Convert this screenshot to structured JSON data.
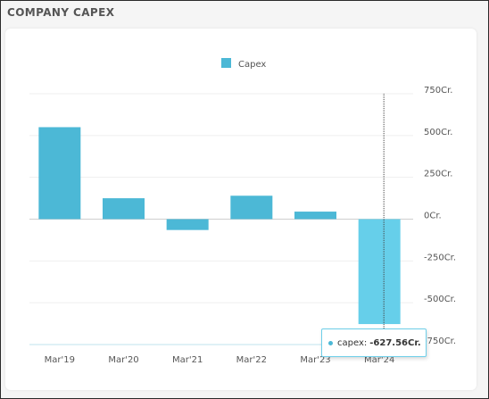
{
  "header": {
    "title": "COMPANY CAPEX"
  },
  "chart_data": {
    "type": "bar",
    "categories": [
      "Mar'19",
      "Mar'20",
      "Mar'21",
      "Mar'22",
      "Mar'23",
      "Mar'24"
    ],
    "series": [
      {
        "name": "Capex",
        "values": [
          550,
          125,
          -65,
          140,
          45,
          -627.56
        ],
        "color": "#4cb8d6"
      }
    ],
    "highlight_index": 5,
    "highlight_color": "#66cfea",
    "yticks": [
      750,
      500,
      250,
      0,
      -250,
      -500,
      -750
    ],
    "ytick_labels": [
      "750Cr.",
      "500Cr.",
      "250Cr.",
      "0Cr.",
      "-250Cr.",
      "-500Cr.",
      "-750Cr."
    ],
    "ylim": [
      -750,
      750
    ],
    "legend": {
      "position": "top-center",
      "label": "Capex"
    },
    "grid": true,
    "tooltip": {
      "label": "capex:",
      "value": "-627.56Cr."
    }
  }
}
